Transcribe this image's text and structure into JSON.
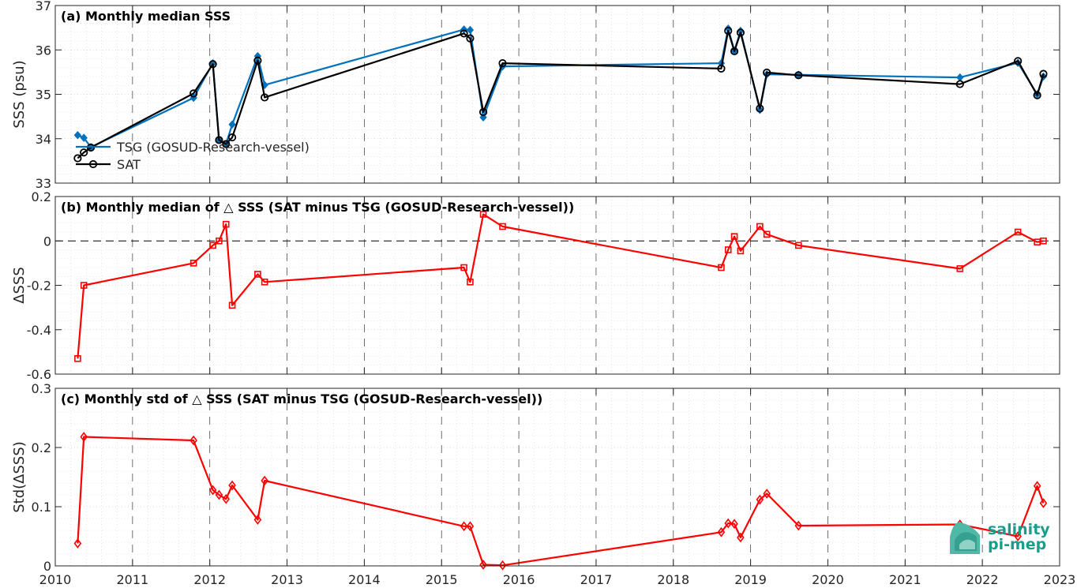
{
  "x_ticks": [
    "2010",
    "2011",
    "2012",
    "2013",
    "2014",
    "2015",
    "2016",
    "2017",
    "2018",
    "2019",
    "2020",
    "2021",
    "2022",
    "2023"
  ],
  "logo": {
    "line1": "salinity",
    "line2": "pi-mep"
  },
  "chart_data": [
    {
      "type": "line",
      "title": "(a) Monthly median SSS",
      "ylabel": "SSS (psu)",
      "xlim": [
        2010,
        2023
      ],
      "ylim": [
        33,
        37
      ],
      "yticks": [
        33,
        34,
        35,
        36,
        37
      ],
      "ytick_labels": [
        "33",
        "34",
        "35",
        "36",
        "37"
      ],
      "grid": true,
      "legend": "lower-left",
      "series": [
        {
          "name": "TSG (GOSUD-Research-vessel)",
          "color": "#0072bd",
          "marker": "diamond",
          "x": [
            2010.29,
            2010.37,
            2010.46,
            2011.79,
            2012.04,
            2012.12,
            2012.21,
            2012.29,
            2012.62,
            2012.71,
            2015.29,
            2015.37,
            2015.54,
            2015.79,
            2018.62,
            2018.71,
            2018.79,
            2018.87,
            2019.12,
            2019.21,
            2019.62,
            2021.71,
            2022.46,
            2022.71,
            2022.79
          ],
          "y": [
            34.08,
            34.02,
            33.81,
            34.92,
            35.7,
            33.97,
            33.88,
            34.32,
            35.86,
            35.21,
            36.46,
            36.45,
            34.48,
            35.63,
            35.7,
            36.48,
            35.98,
            36.43,
            34.65,
            35.45,
            35.44,
            35.38,
            35.71,
            35.0,
            35.4
          ]
        },
        {
          "name": "SAT",
          "color": "#000000",
          "marker": "circle",
          "x": [
            2010.29,
            2010.37,
            2010.46,
            2011.79,
            2012.04,
            2012.12,
            2012.21,
            2012.29,
            2012.62,
            2012.71,
            2015.29,
            2015.37,
            2015.54,
            2015.79,
            2018.62,
            2018.71,
            2018.79,
            2018.87,
            2019.12,
            2019.21,
            2019.62,
            2021.71,
            2022.46,
            2022.71,
            2022.79
          ],
          "y": [
            33.56,
            33.69,
            33.8,
            35.02,
            35.68,
            33.97,
            33.88,
            34.03,
            35.76,
            34.93,
            36.37,
            36.26,
            34.6,
            35.7,
            35.58,
            36.43,
            35.97,
            36.39,
            34.68,
            35.49,
            35.43,
            35.23,
            35.75,
            34.98,
            35.46
          ]
        }
      ]
    },
    {
      "type": "line",
      "title": "(b) Monthly median of △ SSS (SAT minus TSG (GOSUD-Research-vessel))",
      "ylabel": "ΔSSS",
      "xlim": [
        2010,
        2023
      ],
      "ylim": [
        -0.6,
        0.2
      ],
      "yticks": [
        -0.6,
        -0.4,
        -0.2,
        0,
        0.2
      ],
      "ytick_labels": [
        "-0.6",
        "-0.4",
        "-0.2",
        "0",
        "0.2"
      ],
      "grid": true,
      "series": [
        {
          "name": "",
          "color": "#ff0000",
          "marker": "square",
          "x": [
            2010.29,
            2010.37,
            2011.79,
            2012.04,
            2012.12,
            2012.21,
            2012.29,
            2012.62,
            2012.71,
            2015.29,
            2015.37,
            2015.54,
            2015.79,
            2018.62,
            2018.71,
            2018.79,
            2018.87,
            2019.12,
            2019.21,
            2019.62,
            2021.71,
            2022.46,
            2022.71,
            2022.79
          ],
          "y": [
            -0.53,
            -0.2,
            -0.1,
            -0.02,
            0.0,
            0.075,
            -0.29,
            -0.15,
            -0.185,
            -0.12,
            -0.185,
            0.12,
            0.065,
            -0.12,
            -0.04,
            0.02,
            -0.045,
            0.065,
            0.03,
            -0.02,
            -0.125,
            0.04,
            -0.005,
            0.0
          ]
        }
      ]
    },
    {
      "type": "line",
      "title": "(c) Monthly std of △ SSS (SAT minus TSG (GOSUD-Research-vessel))",
      "ylabel": "Std(ΔSSS)",
      "xlim": [
        2010,
        2023
      ],
      "ylim": [
        0,
        0.3
      ],
      "yticks": [
        0,
        0.1,
        0.2,
        0.3
      ],
      "ytick_labels": [
        "0",
        "0.1",
        "0.2",
        "0.3"
      ],
      "grid": true,
      "series": [
        {
          "name": "",
          "color": "#ff0000",
          "marker": "diamond",
          "x": [
            2010.29,
            2010.37,
            2011.79,
            2012.04,
            2012.12,
            2012.21,
            2012.29,
            2012.62,
            2012.71,
            2015.29,
            2015.37,
            2015.54,
            2015.79,
            2018.62,
            2018.71,
            2018.79,
            2018.87,
            2019.12,
            2019.21,
            2019.62,
            2021.71,
            2022.46,
            2022.71,
            2022.79
          ],
          "y": [
            0.038,
            0.218,
            0.212,
            0.128,
            0.12,
            0.113,
            0.136,
            0.078,
            0.144,
            0.067,
            0.067,
            0.002,
            0.001,
            0.057,
            0.072,
            0.071,
            0.048,
            0.112,
            0.122,
            0.068,
            0.07,
            0.05,
            0.135,
            0.106
          ]
        }
      ]
    }
  ]
}
